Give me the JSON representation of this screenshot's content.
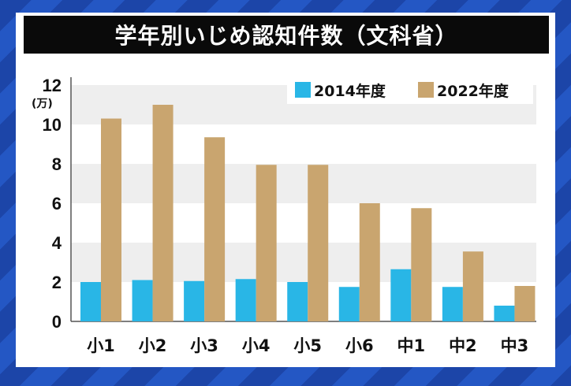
{
  "chart_data": {
    "type": "bar",
    "title": "学年別いじめ認知件数（文科省）",
    "unit_label": "(万)",
    "categories": [
      "小1",
      "小2",
      "小3",
      "小4",
      "小5",
      "小6",
      "中1",
      "中2",
      "中3"
    ],
    "series": [
      {
        "name": "2014年度",
        "color": "#29b6e6",
        "values": [
          2.0,
          2.1,
          2.05,
          2.15,
          2.0,
          1.75,
          2.65,
          1.75,
          0.8
        ]
      },
      {
        "name": "2022年度",
        "color": "#c9a56f",
        "values": [
          10.3,
          11.0,
          9.35,
          7.95,
          7.95,
          6.0,
          5.75,
          3.55,
          1.8
        ]
      }
    ],
    "yticks": [
      0,
      2,
      4,
      6,
      8,
      10,
      12
    ],
    "ylim": [
      0,
      12
    ],
    "grid": "alternating bands",
    "legend": "top-right"
  }
}
